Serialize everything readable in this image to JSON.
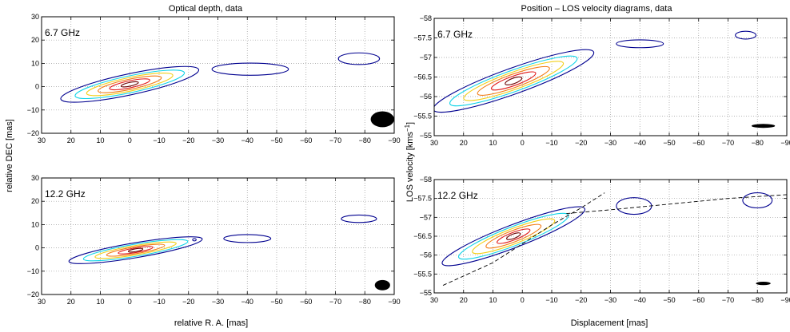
{
  "chart_data": [
    {
      "type": "contour",
      "title": "Optical depth, data",
      "xlabel": "",
      "ylabel": "",
      "panel_label": "6.7 GHz",
      "xlim": [
        30,
        -90
      ],
      "ylim": [
        -20,
        30
      ],
      "xticks": [
        30,
        20,
        10,
        0,
        -10,
        -20,
        -30,
        -40,
        -50,
        -60,
        -70,
        -80,
        -90
      ],
      "xtick_labels": [
        "30",
        "20",
        "10",
        "0",
        "−10",
        "−20",
        "−30",
        "−40",
        "−50",
        "−60",
        "−70",
        "−80",
        "−90"
      ],
      "yticks": [
        -20,
        -10,
        0,
        10,
        20,
        30
      ],
      "ytick_labels": [
        "−20",
        "−10",
        "0",
        "10",
        "20",
        "30"
      ],
      "grid": true,
      "contour_levels": [
        "darkblue",
        "cyan",
        "yellow",
        "orange",
        "red",
        "darkred"
      ],
      "main_component": {
        "center": [
          0,
          1
        ],
        "semi_major": [
          24,
          19,
          15,
          11,
          7,
          3
        ],
        "semi_minor": [
          4.5,
          3.6,
          2.9,
          2.2,
          1.5,
          0.8
        ],
        "angle_deg": 15
      },
      "secondary_components": [
        {
          "center": [
            -41,
            7.5
          ],
          "size": [
            13,
            2.6
          ]
        },
        {
          "center": [
            -78,
            12
          ],
          "size": [
            7,
            2.5
          ]
        }
      ],
      "beam": {
        "center": [
          -86,
          -14
        ],
        "size": [
          4,
          3.4
        ]
      }
    },
    {
      "type": "contour",
      "title": "",
      "xlabel": "",
      "ylabel": "",
      "panel_label": "12.2 GHz",
      "xlim": [
        30,
        -90
      ],
      "ylim": [
        -20,
        30
      ],
      "xticks": [
        30,
        20,
        10,
        0,
        -10,
        -20,
        -30,
        -40,
        -50,
        -60,
        -70,
        -80,
        -90
      ],
      "xtick_labels": [
        "30",
        "20",
        "10",
        "0",
        "−10",
        "−20",
        "−30",
        "−40",
        "−50",
        "−60",
        "−70",
        "−80",
        "−90"
      ],
      "yticks": [
        -20,
        -10,
        0,
        10,
        20,
        30
      ],
      "ytick_labels": [
        "−20",
        "−10",
        "0",
        "10",
        "20",
        "30"
      ],
      "grid": true,
      "contour_levels": [
        "darkblue",
        "cyan",
        "yellow",
        "orange",
        "red",
        "darkred"
      ],
      "main_component": {
        "center": [
          -2,
          -1
        ],
        "semi_major": [
          23,
          18,
          14,
          10,
          6,
          2.5
        ],
        "semi_minor": [
          3.2,
          2.6,
          2,
          1.5,
          1,
          0.6
        ],
        "angle_deg": 12
      },
      "secondary_components": [
        {
          "center": [
            -40,
            4
          ],
          "size": [
            8,
            1.7
          ]
        },
        {
          "center": [
            -78,
            12.5
          ],
          "size": [
            6,
            1.6
          ]
        },
        {
          "center": [
            -22,
            3.5
          ],
          "size": [
            0.6,
            0.4
          ]
        }
      ],
      "beam": {
        "center": [
          -86,
          -16
        ],
        "size": [
          2.6,
          2.2
        ]
      }
    },
    {
      "type": "contour",
      "title": "Position – LOS velocity diagrams, data",
      "xlabel": "",
      "ylabel": "",
      "panel_label": "6.7 GHz",
      "xlim": [
        30,
        -90
      ],
      "ylim": [
        -55,
        -58
      ],
      "xticks": [
        30,
        20,
        10,
        0,
        -10,
        -20,
        -30,
        -40,
        -50,
        -60,
        -70,
        -80,
        -90
      ],
      "xtick_labels": [
        "30",
        "20",
        "10",
        "0",
        "−10",
        "−20",
        "−30",
        "−40",
        "−50",
        "−60",
        "−70",
        "−80",
        "−90"
      ],
      "yticks": [
        -55,
        -55.5,
        -56,
        -56.5,
        -57,
        -57.5,
        -58
      ],
      "ytick_labels": [
        "−55",
        "−55.5",
        "−56",
        "−56.5",
        "−57",
        "−57.5",
        "−58"
      ],
      "grid": true,
      "contour_levels": [
        "darkblue",
        "cyan",
        "yellow",
        "orange",
        "red",
        "darkred"
      ],
      "main_component": {
        "center": [
          3,
          -56.4
        ],
        "semi_major": [
          29,
          23,
          18,
          13,
          8,
          3
        ],
        "semi_minor": [
          0.33,
          0.27,
          0.22,
          0.17,
          0.12,
          0.07
        ],
        "slope": 0.027
      },
      "secondary_components": [
        {
          "center": [
            -40,
            -57.35
          ],
          "size": [
            8,
            0.1
          ]
        },
        {
          "center": [
            -76,
            -57.57
          ],
          "size": [
            3.5,
            0.1
          ]
        }
      ],
      "beam": {
        "center": [
          -82,
          -55.25
        ],
        "size": [
          4,
          0.05
        ]
      }
    },
    {
      "type": "contour",
      "title": "",
      "xlabel": "Displacement [mas]",
      "ylabel": "",
      "panel_label": "12.2 GHz",
      "xlim": [
        30,
        -90
      ],
      "ylim": [
        -55,
        -58
      ],
      "xticks": [
        30,
        20,
        10,
        0,
        -10,
        -20,
        -30,
        -40,
        -50,
        -60,
        -70,
        -80,
        -90
      ],
      "xtick_labels": [
        "30",
        "20",
        "10",
        "0",
        "−10",
        "−20",
        "−30",
        "−40",
        "−50",
        "−60",
        "−70",
        "−80",
        "−90"
      ],
      "yticks": [
        -55,
        -55.5,
        -56,
        -56.5,
        -57,
        -57.5,
        -58
      ],
      "ytick_labels": [
        "−55",
        "−55.5",
        "−56",
        "−56.5",
        "−57",
        "−57.5",
        "−58"
      ],
      "grid": true,
      "contour_levels": [
        "darkblue",
        "cyan",
        "yellow",
        "orange",
        "red",
        "darkred"
      ],
      "main_component": {
        "center": [
          3,
          -56.5
        ],
        "semi_major": [
          26,
          20,
          15,
          10,
          6,
          2.5
        ],
        "semi_minor": [
          0.3,
          0.25,
          0.2,
          0.15,
          0.1,
          0.06
        ],
        "slope": 0.03
      },
      "secondary_components": [
        {
          "center": [
            -38,
            -57.3
          ],
          "size": [
            6,
            0.22
          ]
        },
        {
          "center": [
            -80,
            -57.45
          ],
          "size": [
            5,
            0.2
          ]
        }
      ],
      "model_curves": [
        {
          "x": [
            27,
            10,
            0,
            -10,
            -20,
            -28
          ],
          "y": [
            -55.2,
            -55.8,
            -56.3,
            -56.8,
            -57.25,
            -57.65
          ]
        },
        {
          "x": [
            -15,
            -30,
            -50,
            -70,
            -90
          ],
          "y": [
            -57.1,
            -57.2,
            -57.35,
            -57.5,
            -57.6
          ]
        }
      ],
      "beam": {
        "center": [
          -82,
          -55.25
        ],
        "size": [
          2.5,
          0.045
        ]
      }
    }
  ],
  "shared": {
    "left_ylabel": "relative DEC [mas]",
    "left_xlabel": "relative R. A. [mas]",
    "right_ylabel": "LOS velocity [kms",
    "right_ylabel_sup": "−1",
    "right_ylabel_end": "]"
  },
  "colors": {
    "darkblue": "#00008f",
    "cyan": "#11d4e8",
    "yellow": "#f2cf18",
    "orange": "#f27b13",
    "red": "#e11a1a",
    "darkred": "#6b0000",
    "grid": "#9a9a9a"
  }
}
